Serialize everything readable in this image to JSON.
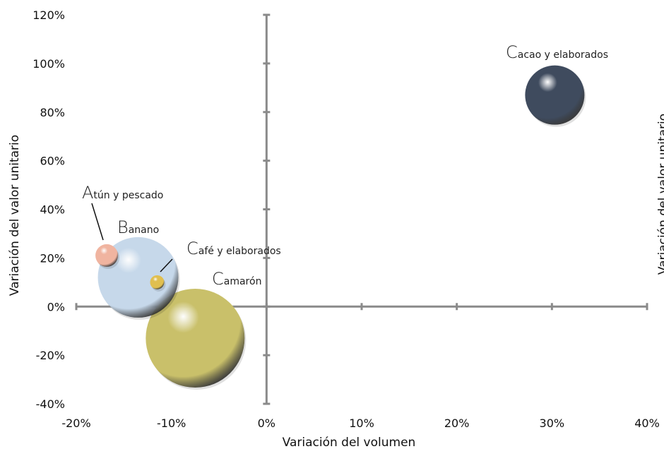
{
  "chart_data": {
    "type": "scatter",
    "xlabel": "Variación del volumen",
    "ylabel": "Variación del valor unitario",
    "ylabel_right": "Variación del valor unitario",
    "xlim": [
      -20,
      40
    ],
    "ylim": [
      -40,
      120
    ],
    "x_ticks": [
      "-20%",
      "-10%",
      "0%",
      "10%",
      "20%",
      "30%",
      "40%"
    ],
    "y_ticks": [
      "-40%",
      "-20%",
      "0%",
      "20%",
      "40%",
      "60%",
      "80%",
      "100%",
      "120%"
    ],
    "grid": false,
    "legend": "none",
    "points": [
      {
        "id": "cacao",
        "first": "C",
        "rest": "acao y elaborados",
        "x": 30.3,
        "y": 87,
        "size": 42,
        "color": "#3f4b5e"
      },
      {
        "id": "camaron",
        "first": "C",
        "rest": "amarón",
        "x": -7.5,
        "y": -13,
        "size": 70,
        "color": "#c9c06a"
      },
      {
        "id": "banano",
        "first": "B",
        "rest": "anano",
        "x": -13.5,
        "y": 12,
        "size": 57,
        "color": "#c6d8ea"
      },
      {
        "id": "atun",
        "first": "A",
        "rest": "tún y pescado",
        "x": -16.8,
        "y": 21,
        "size": 16,
        "color": "#f0b4a0"
      },
      {
        "id": "cafe",
        "first": "C",
        "rest": "afé y elaborados",
        "x": -11.5,
        "y": 10,
        "size": 10,
        "color": "#e0bf50"
      }
    ]
  }
}
